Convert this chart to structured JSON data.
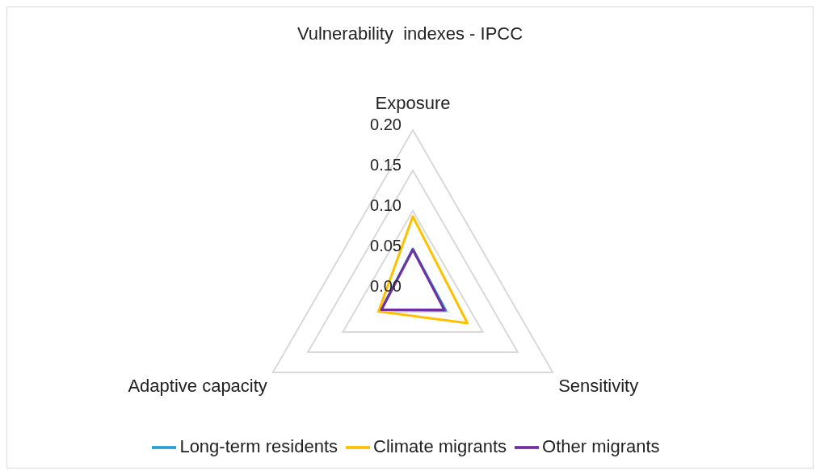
{
  "chart_data": {
    "type": "radar",
    "title": "Vulnerability  indexes - IPCC",
    "categories": [
      "Exposure",
      "Sensitivity",
      "Adaptive capacity"
    ],
    "series": [
      {
        "name": "Long-term residents",
        "color": "#2b9fd3",
        "values": [
          0.053,
          0.047,
          0.045
        ]
      },
      {
        "name": "Climate migrants",
        "color": "#ffc000",
        "values": [
          0.093,
          0.078,
          0.049
        ]
      },
      {
        "name": "Other migrants",
        "color": "#7030a0",
        "values": [
          0.052,
          0.045,
          0.045
        ]
      }
    ],
    "ylim": [
      0,
      0.2
    ],
    "yticks": [
      {
        "value": 0,
        "label": "0.00"
      },
      {
        "value": 0.05,
        "label": "0.05"
      },
      {
        "value": 0.1,
        "label": "0.10"
      },
      {
        "value": 0.15,
        "label": "0.15"
      },
      {
        "value": 0.2,
        "label": "0.20"
      }
    ],
    "grid": true,
    "legend": "bottom",
    "line_style": "solid",
    "marker": "none"
  }
}
